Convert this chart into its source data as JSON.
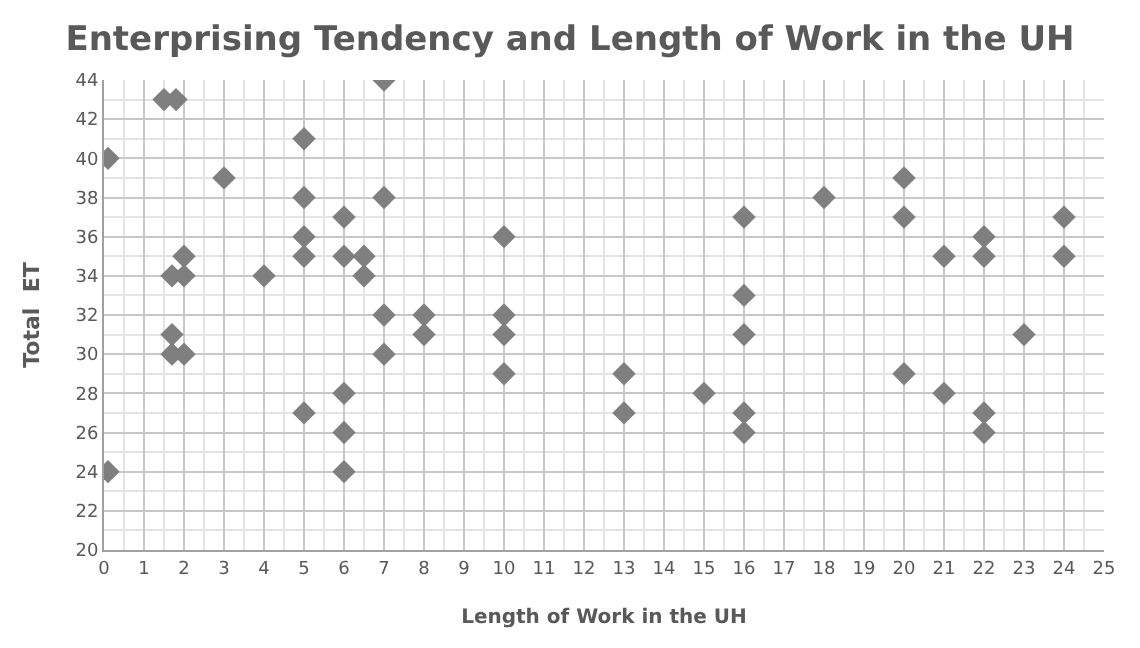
{
  "chart_data": {
    "type": "scatter",
    "title": "Enterprising Tendency and Length of Work in the UH",
    "xlabel": "Length of Work in the UH",
    "ylabel": "Total  ET",
    "x": [
      0.1,
      0.1,
      1.5,
      1.8,
      1.7,
      2,
      2,
      1.7,
      1.7,
      2,
      3,
      4,
      5,
      5,
      5,
      5,
      5,
      6,
      6,
      6.5,
      6.5,
      6,
      6,
      6,
      7,
      7,
      7,
      7,
      8,
      8,
      10,
      10,
      10,
      10,
      13,
      13,
      15,
      16,
      16,
      16,
      16,
      16,
      18,
      20,
      20,
      20,
      21,
      21,
      22,
      22,
      22,
      22,
      23,
      24,
      24
    ],
    "values": [
      40,
      24,
      43,
      43,
      34,
      34,
      35,
      31,
      30,
      30,
      39,
      34,
      41,
      38,
      36,
      35,
      27,
      37,
      35,
      35,
      34,
      28,
      26,
      24,
      44,
      38,
      32,
      30,
      32,
      31,
      36,
      32,
      31,
      29,
      29,
      27,
      28,
      37,
      33,
      31,
      27,
      26,
      38,
      39,
      37,
      29,
      35,
      28,
      36,
      35,
      27,
      26,
      31,
      37,
      35
    ],
    "color": "#7f7f7f",
    "marker": "diamond",
    "grid": true,
    "xlim": [
      0,
      25
    ],
    "xticks": [
      0,
      1,
      2,
      3,
      4,
      5,
      6,
      7,
      8,
      9,
      10,
      11,
      12,
      13,
      14,
      15,
      16,
      17,
      18,
      19,
      20,
      21,
      22,
      23,
      24,
      25
    ],
    "ylim": [
      20,
      44
    ],
    "yticks": [
      20,
      22,
      24,
      26,
      28,
      30,
      32,
      34,
      36,
      38,
      40,
      42,
      44
    ]
  }
}
